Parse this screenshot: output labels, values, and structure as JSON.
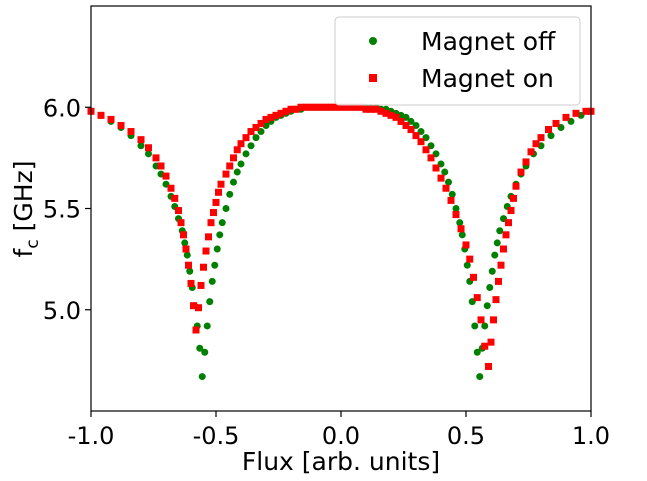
{
  "chart_data": {
    "type": "scatter",
    "xlabel": "Flux [arb. units]",
    "ylabel_main": "f",
    "ylabel_sub": "c",
    "ylabel_rest": " [GHz]",
    "xlim": [
      -1.0,
      1.0
    ],
    "ylim": [
      4.5,
      6.5
    ],
    "x_ticks": [
      -1.0,
      -0.5,
      0.0,
      0.5,
      1.0
    ],
    "x_tick_labels": [
      "-1.0",
      "-0.5",
      "0.0",
      "0.5",
      "1.0"
    ],
    "y_ticks": [
      5.0,
      5.5,
      6.0
    ],
    "y_tick_labels": [
      "5.0",
      "5.5",
      "6.0"
    ],
    "grid": false,
    "legend_position": "top-right",
    "series": [
      {
        "name": "Magnet off",
        "marker": "circle",
        "color": "#008000",
        "x": [
          -1.0,
          -0.96,
          -0.92,
          -0.88,
          -0.84,
          -0.8,
          -0.77,
          -0.74,
          -0.72,
          -0.7,
          -0.68,
          -0.665,
          -0.65,
          -0.635,
          -0.625,
          -0.615,
          -0.605,
          -0.595,
          -0.585,
          -0.575,
          -0.565,
          -0.555,
          -0.545,
          -0.535,
          -0.525,
          -0.515,
          -0.505,
          -0.495,
          -0.485,
          -0.475,
          -0.46,
          -0.445,
          -0.43,
          -0.415,
          -0.4,
          -0.38,
          -0.36,
          -0.34,
          -0.32,
          -0.3,
          -0.28,
          -0.26,
          -0.24,
          -0.22,
          -0.2,
          -0.18,
          -0.16,
          -0.14,
          -0.12,
          -0.1,
          -0.08,
          -0.06,
          -0.04,
          -0.02,
          0.0,
          0.02,
          0.04,
          0.06,
          0.08,
          0.1,
          0.12,
          0.14,
          0.16,
          0.18,
          0.2,
          0.22,
          0.24,
          0.26,
          0.28,
          0.3,
          0.32,
          0.34,
          0.36,
          0.38,
          0.4,
          0.415,
          0.43,
          0.445,
          0.46,
          0.475,
          0.485,
          0.495,
          0.505,
          0.515,
          0.525,
          0.535,
          0.545,
          0.555,
          0.565,
          0.575,
          0.585,
          0.595,
          0.605,
          0.615,
          0.625,
          0.635,
          0.65,
          0.665,
          0.68,
          0.7,
          0.72,
          0.74,
          0.77,
          0.8,
          0.84,
          0.88,
          0.92,
          0.96,
          1.0
        ],
        "values": [
          5.98,
          5.96,
          5.93,
          5.9,
          5.86,
          5.81,
          5.77,
          5.71,
          5.67,
          5.62,
          5.56,
          5.51,
          5.45,
          5.39,
          5.33,
          5.27,
          5.19,
          5.11,
          5.02,
          4.92,
          4.81,
          4.67,
          4.79,
          4.92,
          5.04,
          5.14,
          5.22,
          5.3,
          5.37,
          5.43,
          5.5,
          5.57,
          5.63,
          5.68,
          5.72,
          5.77,
          5.81,
          5.85,
          5.88,
          5.91,
          5.93,
          5.95,
          5.96,
          5.97,
          5.98,
          5.99,
          5.99,
          6.0,
          6.0,
          6.0,
          6.0,
          6.0,
          6.0,
          6.0,
          6.0,
          6.0,
          6.0,
          6.0,
          6.0,
          6.0,
          6.0,
          6.0,
          5.99,
          5.99,
          5.98,
          5.97,
          5.96,
          5.95,
          5.93,
          5.91,
          5.88,
          5.85,
          5.81,
          5.77,
          5.72,
          5.68,
          5.63,
          5.57,
          5.5,
          5.43,
          5.37,
          5.3,
          5.22,
          5.14,
          5.04,
          4.92,
          4.79,
          4.67,
          4.81,
          4.92,
          5.02,
          5.11,
          5.19,
          5.27,
          5.33,
          5.39,
          5.45,
          5.51,
          5.56,
          5.62,
          5.67,
          5.71,
          5.77,
          5.81,
          5.86,
          5.9,
          5.93,
          5.96,
          5.98
        ]
      },
      {
        "name": "Magnet on",
        "marker": "square",
        "color": "#ff0000",
        "x": [
          -1.0,
          -0.96,
          -0.92,
          -0.88,
          -0.84,
          -0.8,
          -0.77,
          -0.74,
          -0.72,
          -0.7,
          -0.68,
          -0.665,
          -0.65,
          -0.64,
          -0.63,
          -0.62,
          -0.61,
          -0.6,
          -0.59,
          -0.58,
          -0.57,
          -0.56,
          -0.55,
          -0.54,
          -0.53,
          -0.52,
          -0.51,
          -0.5,
          -0.49,
          -0.48,
          -0.46,
          -0.445,
          -0.43,
          -0.415,
          -0.4,
          -0.38,
          -0.36,
          -0.34,
          -0.32,
          -0.3,
          -0.28,
          -0.26,
          -0.24,
          -0.22,
          -0.2,
          -0.18,
          -0.16,
          -0.14,
          -0.12,
          -0.1,
          -0.08,
          -0.06,
          -0.04,
          -0.02,
          0.0,
          0.02,
          0.04,
          0.06,
          0.08,
          0.1,
          0.12,
          0.14,
          0.16,
          0.18,
          0.2,
          0.22,
          0.24,
          0.26,
          0.28,
          0.3,
          0.32,
          0.34,
          0.36,
          0.38,
          0.4,
          0.42,
          0.44,
          0.46,
          0.48,
          0.5,
          0.515,
          0.53,
          0.545,
          0.56,
          0.575,
          0.59,
          0.6,
          0.61,
          0.62,
          0.63,
          0.64,
          0.65,
          0.66,
          0.67,
          0.68,
          0.69,
          0.7,
          0.72,
          0.74,
          0.76,
          0.78,
          0.8,
          0.83,
          0.86,
          0.9,
          0.94,
          0.98,
          1.0
        ],
        "values": [
          5.98,
          5.96,
          5.94,
          5.91,
          5.88,
          5.84,
          5.8,
          5.75,
          5.71,
          5.66,
          5.6,
          5.55,
          5.49,
          5.43,
          5.37,
          5.3,
          5.22,
          5.13,
          5.02,
          4.9,
          5.01,
          5.12,
          5.21,
          5.29,
          5.36,
          5.43,
          5.48,
          5.53,
          5.58,
          5.62,
          5.67,
          5.71,
          5.75,
          5.79,
          5.82,
          5.85,
          5.88,
          5.9,
          5.92,
          5.94,
          5.95,
          5.96,
          5.97,
          5.98,
          5.99,
          5.99,
          6.0,
          6.0,
          6.0,
          6.0,
          6.0,
          6.0,
          6.0,
          6.0,
          6.0,
          6.0,
          6.0,
          6.0,
          6.0,
          5.99,
          5.99,
          5.99,
          5.98,
          5.97,
          5.96,
          5.95,
          5.93,
          5.91,
          5.89,
          5.86,
          5.83,
          5.79,
          5.75,
          5.7,
          5.65,
          5.6,
          5.54,
          5.47,
          5.4,
          5.32,
          5.25,
          5.16,
          5.06,
          4.95,
          4.82,
          4.72,
          4.84,
          4.95,
          5.05,
          5.14,
          5.22,
          5.3,
          5.37,
          5.43,
          5.49,
          5.55,
          5.61,
          5.68,
          5.73,
          5.78,
          5.82,
          5.85,
          5.89,
          5.92,
          5.95,
          5.97,
          5.98,
          5.98
        ]
      }
    ]
  }
}
